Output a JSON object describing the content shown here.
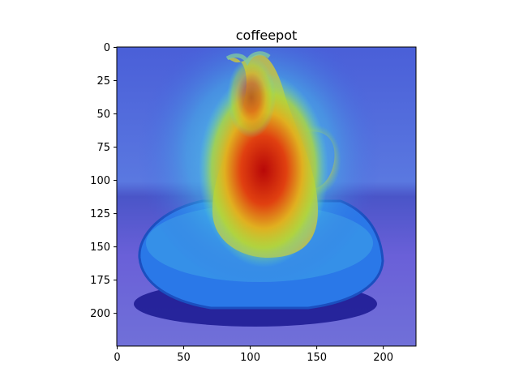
{
  "chart_data": {
    "type": "heatmap",
    "title": "coffeepot",
    "xlabel": "",
    "ylabel": "",
    "xlim": [
      0,
      224
    ],
    "ylim": [
      224,
      0
    ],
    "x_ticks": [
      0,
      50,
      100,
      150,
      200
    ],
    "y_ticks": [
      0,
      25,
      50,
      75,
      100,
      125,
      150,
      175,
      200
    ],
    "grid": false,
    "colormap": "jet",
    "overlay": "class activation map over photo of a blue ceramic coffeepot on a saucer",
    "hotspots": [
      {
        "x": 110,
        "y": 95,
        "intensity": 1.0,
        "sigma": 28
      },
      {
        "x": 95,
        "y": 45,
        "intensity": 0.65,
        "sigma": 22
      },
      {
        "x": 150,
        "y": 85,
        "intensity": 0.55,
        "sigma": 26
      },
      {
        "x": 115,
        "y": 150,
        "intensity": 0.5,
        "sigma": 30
      }
    ]
  },
  "colors": {
    "background_blue": "#4a57d8",
    "table_purple": "#5b4fd0",
    "hot_red": "#c21010",
    "warm_yellow": "#d8d030",
    "cool_cyan": "#40c8e0"
  }
}
